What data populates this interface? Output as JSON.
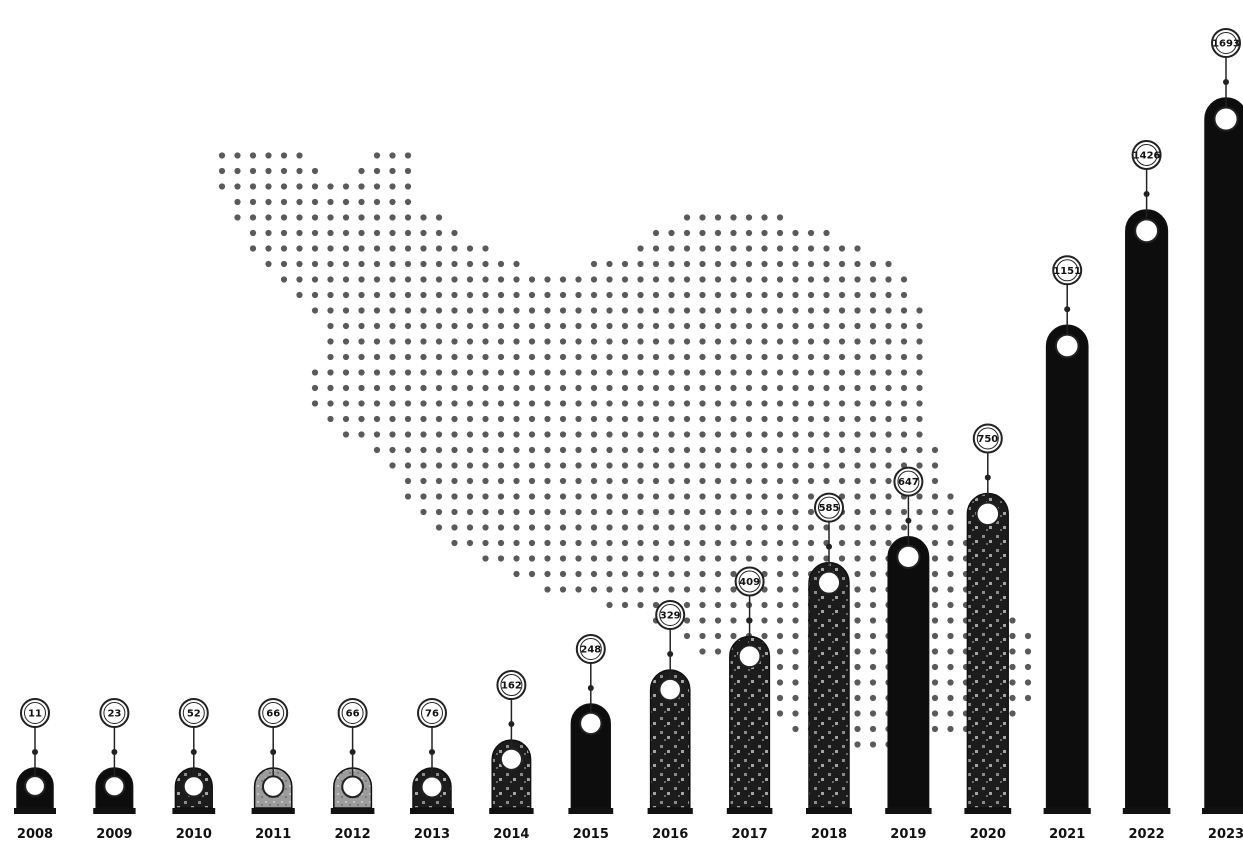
{
  "chart_data": {
    "type": "bar",
    "title": "",
    "xlabel": "",
    "ylabel": "",
    "categories": [
      "2008",
      "2009",
      "2010",
      "2011",
      "2012",
      "2013",
      "2014",
      "2015",
      "2016",
      "2017",
      "2018",
      "2019",
      "2020",
      "2021",
      "2022",
      "2023"
    ],
    "values": [
      11,
      23,
      52,
      66,
      66,
      76,
      162,
      248,
      329,
      409,
      585,
      647,
      750,
      1151,
      1426,
      1693
    ],
    "value_labels": [
      "11",
      "23",
      "52",
      "66",
      "66",
      "76",
      "162",
      "248",
      "329",
      "409",
      "585",
      "647",
      "750",
      "1151",
      "1426",
      "1693"
    ],
    "ylim": [
      0,
      1693
    ],
    "grid": false,
    "legend": "none",
    "background": "dotted map silhouette of Iran",
    "colors": {
      "bar": "#0d0d0d",
      "bar_textured": "#2a2a2a",
      "bar_light": "#9a9a9a",
      "map_dot": "#5a5a5a",
      "marker_fill": "#ffffff",
      "axis": "#111111"
    }
  }
}
